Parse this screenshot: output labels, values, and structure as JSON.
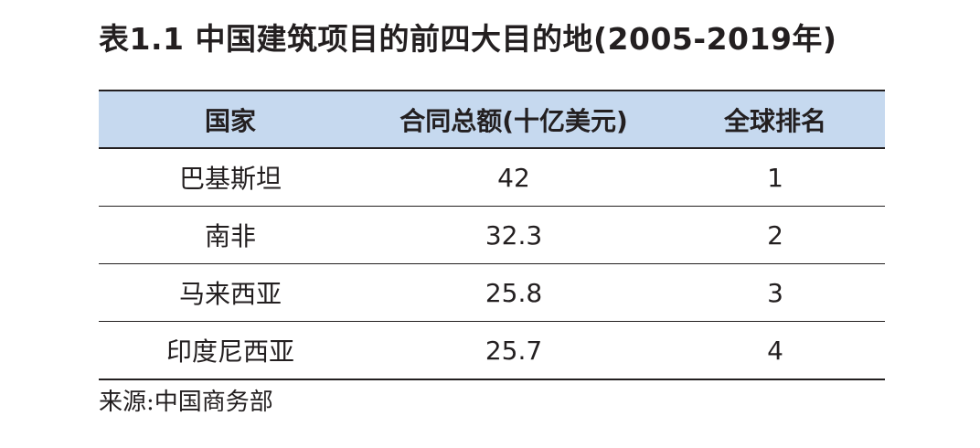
{
  "title": "表1.1  中国建筑项目的前四大目的地(2005-2019年)",
  "table": {
    "headers": [
      "国家",
      "合同总额(十亿美元)",
      "全球排名"
    ],
    "rows": [
      [
        "巴基斯坦",
        "42",
        "1"
      ],
      [
        "南非",
        "32.3",
        "2"
      ],
      [
        "马来西亚",
        "25.8",
        "3"
      ],
      [
        "印度尼西亚",
        "25.7",
        "4"
      ]
    ]
  },
  "source": "来源:中国商务部",
  "colors": {
    "header_background": "#c6d9ef",
    "text": "#231f20",
    "rule": "#231f20"
  }
}
